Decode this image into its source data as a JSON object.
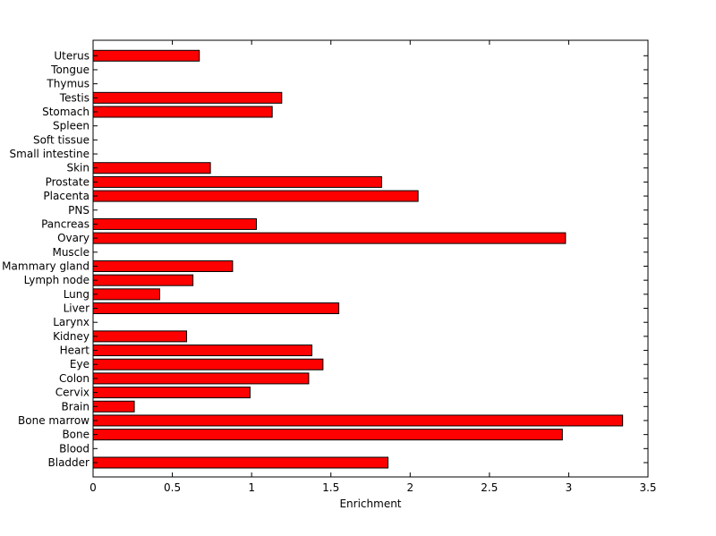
{
  "chart_data": {
    "type": "bar",
    "orientation": "horizontal",
    "title": "",
    "xlabel": "Enrichment",
    "ylabel": "",
    "xlim": [
      0,
      3.5
    ],
    "xticks": [
      "0",
      "0.5",
      "1",
      "1.5",
      "2",
      "2.5",
      "3",
      "3.5"
    ],
    "grid": false,
    "bar_color": "#ff0000",
    "categories": [
      "Bladder",
      "Blood",
      "Bone",
      "Bone marrow",
      "Brain",
      "Cervix",
      "Colon",
      "Eye",
      "Heart",
      "Kidney",
      "Larynx",
      "Liver",
      "Lung",
      "Lymph node",
      "Mammary gland",
      "Muscle",
      "Ovary",
      "Pancreas",
      "PNS",
      "Placenta",
      "Prostate",
      "Skin",
      "Small intestine",
      "Soft tissue",
      "Spleen",
      "Stomach",
      "Testis",
      "Thymus",
      "Tongue",
      "Uterus"
    ],
    "values": [
      1.86,
      0,
      2.96,
      3.34,
      0.26,
      0.99,
      1.36,
      1.45,
      1.38,
      0.59,
      0,
      1.55,
      0.42,
      0.63,
      0.88,
      0,
      2.98,
      1.03,
      0,
      2.05,
      1.82,
      0.74,
      0,
      0,
      0,
      1.13,
      1.19,
      0,
      0,
      0.67
    ]
  }
}
